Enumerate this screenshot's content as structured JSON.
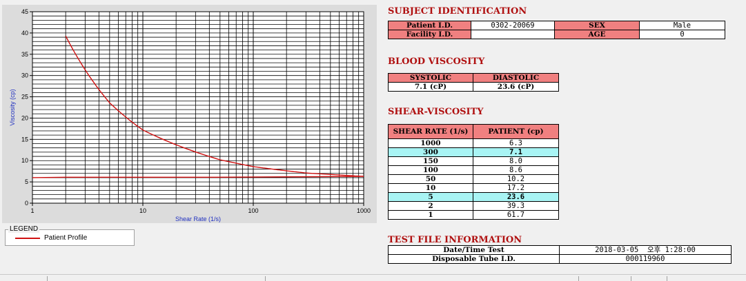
{
  "chart_data": {
    "type": "line",
    "xlabel": "Shear Rate (1/s)",
    "ylabel": "Viscosity (cp)",
    "x_scale": "log",
    "xlim": [
      1,
      1000
    ],
    "ylim": [
      0,
      45
    ],
    "x_ticks": [
      "1",
      "10",
      "100",
      "1000"
    ],
    "y_ticks": [
      "0",
      "5",
      "10",
      "15",
      "20",
      "25",
      "30",
      "35",
      "40",
      "45"
    ],
    "grid": true,
    "colors": {
      "series": "#d01010",
      "plot_bg": "#ffffff",
      "grid": "#000000"
    },
    "series": [
      {
        "name": "Patient Profile",
        "points": [
          [
            2,
            39.3
          ],
          [
            5,
            23.6
          ],
          [
            10,
            17.2
          ],
          [
            50,
            10.2
          ],
          [
            100,
            8.6
          ],
          [
            150,
            8.0
          ],
          [
            300,
            7.1
          ],
          [
            1000,
            6.3
          ]
        ]
      },
      {
        "name": "",
        "points": [
          [
            1,
            6.0
          ],
          [
            2,
            6.1
          ],
          [
            45,
            6.1
          ],
          [
            1000,
            6.3
          ]
        ]
      }
    ]
  },
  "legend": {
    "title": "LEGEND",
    "entry": "Patient Profile"
  },
  "subject": {
    "title": "SUBJECT IDENTIFICATION",
    "patient_id_label": "Patient I.D.",
    "patient_id": "0302-20069",
    "sex_label": "SEX",
    "sex": "Male",
    "facility_id_label": "Facility I.D.",
    "facility_id": "",
    "age_label": "AGE",
    "age": "0"
  },
  "blood": {
    "title": "BLOOD VISCOSITY",
    "systolic_label": "SYSTOLIC",
    "diastolic_label": "DIASTOLIC",
    "systolic": "7.1 (cP)",
    "diastolic": "23.6 (cP)"
  },
  "shear": {
    "title": "SHEAR-VISCOSITY",
    "col_rate": "SHEAR RATE (1/s)",
    "col_patient": "PATIENT (cp)",
    "rows": [
      {
        "rate": "1000",
        "value": "6.3",
        "highlight": false
      },
      {
        "rate": "300",
        "value": "7.1",
        "highlight": true
      },
      {
        "rate": "150",
        "value": "8.0",
        "highlight": false
      },
      {
        "rate": "100",
        "value": "8.6",
        "highlight": false
      },
      {
        "rate": "50",
        "value": "10.2",
        "highlight": false
      },
      {
        "rate": "10",
        "value": "17.2",
        "highlight": false
      },
      {
        "rate": "5",
        "value": "23.6",
        "highlight": true
      },
      {
        "rate": "2",
        "value": "39.3",
        "highlight": false
      },
      {
        "rate": "1",
        "value": "61.7",
        "highlight": false
      }
    ]
  },
  "test_file": {
    "title": "TEST FILE INFORMATION",
    "datetime_label": "Date/Time Test",
    "datetime": "2018-03-05  오후 1:28:00",
    "tube_label": "Disposable Tube I.D.",
    "tube": "000119960"
  }
}
